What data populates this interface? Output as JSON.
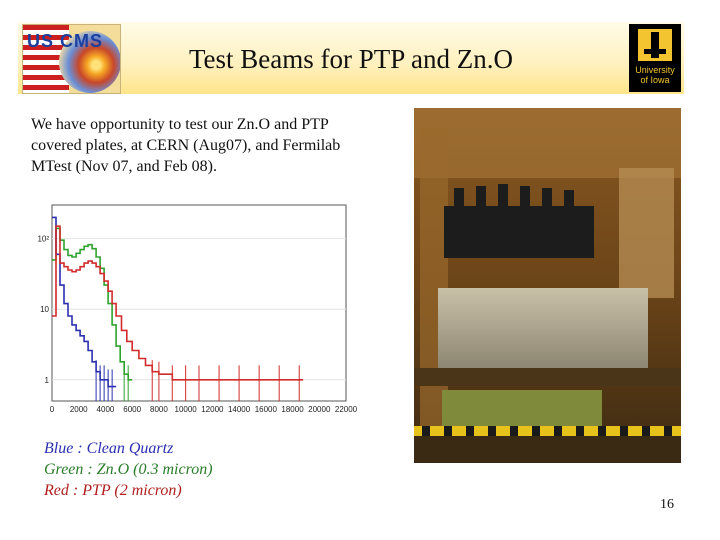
{
  "slide": {
    "title": "Test Beams for PTP and Zn.O",
    "page_number": "16"
  },
  "logos": {
    "left": {
      "text": "US CMS",
      "icon": "us-cms-logo"
    },
    "right": {
      "line1": "University",
      "line2": "of Iowa",
      "icon": "university-of-iowa-logo"
    }
  },
  "body": {
    "text": "We have opportunity to test our Zn.O and PTP covered plates, at CERN (Aug07), and Fermilab MTest (Nov 07, and Feb 08)."
  },
  "legend": {
    "blue": "Blue : Clean Quartz",
    "green": "Green : Zn.O (0.3 micron)",
    "red": "Red : PTP (2 micron)"
  },
  "colors": {
    "blue": "#2b2fb0",
    "green": "#2ea32e",
    "red": "#d22b2b",
    "header_band": "#ffe58a"
  },
  "chart_data": {
    "type": "line",
    "title": "",
    "xlabel": "",
    "ylabel": "",
    "xlim": [
      0,
      22000
    ],
    "ylim": [
      0.5,
      300
    ],
    "yscale": "log",
    "xticks": [
      "0",
      "2000",
      "4000",
      "6000",
      "8000",
      "10000",
      "12000",
      "14000",
      "16000",
      "18000",
      "20000",
      "22000"
    ],
    "yticks": [
      "1",
      "10",
      "10²"
    ],
    "series": [
      {
        "color": "#2ea32e",
        "x": [
          0,
          300,
          600,
          900,
          1200,
          1500,
          1800,
          2100,
          2400,
          2700,
          3000,
          3300,
          3600,
          3900,
          4200,
          4500,
          4800,
          5100,
          5400,
          5700
        ],
        "values": [
          50,
          140,
          95,
          70,
          58,
          55,
          62,
          70,
          78,
          82,
          72,
          55,
          38,
          22,
          12,
          6,
          3,
          1.8,
          1.2,
          1
        ]
      },
      {
        "color": "#2b2fb0",
        "x": [
          0,
          300,
          600,
          900,
          1200,
          1500,
          1800,
          2100,
          2400,
          2700,
          3000,
          3300,
          3600,
          3900,
          4200,
          4500
        ],
        "values": [
          200,
          60,
          22,
          12,
          8,
          6,
          5,
          4.2,
          3.5,
          2.6,
          1.8,
          1.3,
          1,
          1,
          0.8,
          0.8
        ]
      },
      {
        "color": "#d22b2b",
        "x": [
          0,
          300,
          600,
          900,
          1200,
          1500,
          1800,
          2100,
          2400,
          2700,
          3000,
          3300,
          3600,
          3900,
          4200,
          4500,
          4800,
          5200,
          5600,
          6000,
          6500,
          7000,
          7500,
          8000,
          9000,
          10000,
          11000,
          12500,
          14000,
          15500,
          17000,
          18500
        ],
        "values": [
          8,
          150,
          45,
          40,
          36,
          34,
          36,
          40,
          45,
          48,
          45,
          40,
          32,
          25,
          18,
          12,
          8,
          5,
          3.5,
          2.6,
          2,
          1.6,
          1.3,
          1.2,
          1,
          1,
          1,
          1,
          1,
          1,
          1,
          1
        ]
      }
    ]
  }
}
